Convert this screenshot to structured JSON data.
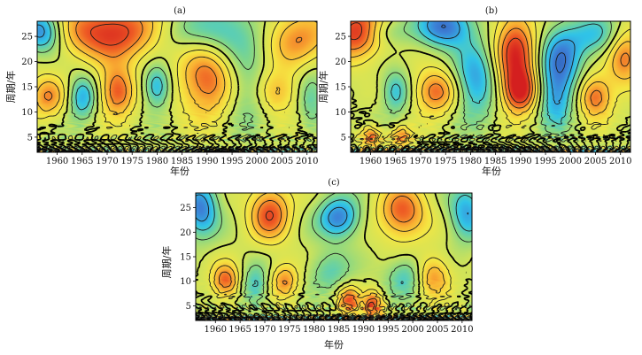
{
  "chart_data": [
    {
      "type": "heatmap",
      "panel_label": "(a)",
      "xlabel": "年份",
      "ylabel": "周期/年",
      "xlim": [
        1956,
        2012
      ],
      "ylim": [
        2,
        28
      ],
      "xticks": [
        "1960",
        "1965",
        "1970",
        "1975",
        "1980",
        "1985",
        "1990",
        "1995",
        "2000",
        "2005",
        "2010"
      ],
      "yticks": [
        "5",
        "10",
        "15",
        "20",
        "25"
      ],
      "grid": false,
      "centers": [
        {
          "x": 1971,
          "y": 26,
          "v": 0.95,
          "sx": 8,
          "sy": 4
        },
        {
          "x": 1972,
          "y": 14,
          "v": 0.8,
          "sx": 2.5,
          "sy": 3.5
        },
        {
          "x": 1958,
          "y": 13,
          "v": 0.6,
          "sx": 2.5,
          "sy": 3
        },
        {
          "x": 1990,
          "y": 16,
          "v": 0.75,
          "sx": 4,
          "sy": 5
        },
        {
          "x": 2004,
          "y": 14,
          "v": 0.5,
          "sx": 3,
          "sy": 3
        },
        {
          "x": 2008,
          "y": 25,
          "v": 0.65,
          "sx": 5,
          "sy": 4
        },
        {
          "x": 1957,
          "y": 26,
          "v": -0.85,
          "sx": 3,
          "sy": 3
        },
        {
          "x": 1965,
          "y": 13,
          "v": -0.6,
          "sx": 2,
          "sy": 3
        },
        {
          "x": 1980,
          "y": 15,
          "v": -0.6,
          "sx": 2,
          "sy": 3
        },
        {
          "x": 1995,
          "y": 26,
          "v": -0.45,
          "sx": 6,
          "sy": 4
        },
        {
          "x": 1998,
          "y": 14,
          "v": -0.35,
          "sx": 3,
          "sy": 5
        },
        {
          "x": 1983,
          "y": 26,
          "v": -0.3,
          "sx": 5,
          "sy": 3
        },
        {
          "x": 2011,
          "y": 13,
          "v": -0.35,
          "sx": 2,
          "sy": 4
        }
      ],
      "low_period_blobs": {
        "spacing": 2.5,
        "amplitude": 0.6,
        "period_scale": 2.8
      }
    },
    {
      "type": "heatmap",
      "panel_label": "(b)",
      "xlabel": "年份",
      "ylabel": "周期/年",
      "xlim": [
        1956,
        2012
      ],
      "ylim": [
        2,
        28
      ],
      "xticks": [
        "1960",
        "1965",
        "1970",
        "1975",
        "1980",
        "1985",
        "1990",
        "1995",
        "2000",
        "2005",
        "2010"
      ],
      "yticks": [
        "5",
        "10",
        "15",
        "20",
        "25"
      ],
      "grid": false,
      "centers": [
        {
          "x": 1957,
          "y": 26,
          "v": 0.9,
          "sx": 4,
          "sy": 4
        },
        {
          "x": 1973,
          "y": 14,
          "v": 0.75,
          "sx": 3,
          "sy": 3
        },
        {
          "x": 1989,
          "y": 22,
          "v": 0.9,
          "sx": 3,
          "sy": 6
        },
        {
          "x": 1990,
          "y": 14,
          "v": 0.85,
          "sx": 2.5,
          "sy": 3
        },
        {
          "x": 2005,
          "y": 13,
          "v": 0.75,
          "sx": 2.5,
          "sy": 3
        },
        {
          "x": 2011,
          "y": 21,
          "v": 0.7,
          "sx": 2.5,
          "sy": 4
        },
        {
          "x": 1960,
          "y": 5,
          "v": 0.7,
          "sx": 1.5,
          "sy": 1.5
        },
        {
          "x": 1966,
          "y": 5,
          "v": 0.6,
          "sx": 1.5,
          "sy": 1.5
        },
        {
          "x": 1975,
          "y": 27,
          "v": -0.8,
          "sx": 4,
          "sy": 3
        },
        {
          "x": 1965,
          "y": 14,
          "v": -0.5,
          "sx": 2,
          "sy": 3
        },
        {
          "x": 1981,
          "y": 16,
          "v": -0.65,
          "sx": 3,
          "sy": 5
        },
        {
          "x": 1998,
          "y": 20,
          "v": -0.7,
          "sx": 3,
          "sy": 5
        },
        {
          "x": 1997,
          "y": 12,
          "v": -0.5,
          "sx": 2.5,
          "sy": 4
        },
        {
          "x": 2005,
          "y": 25,
          "v": -0.45,
          "sx": 4,
          "sy": 3
        },
        {
          "x": 1963,
          "y": 26,
          "v": -0.3,
          "sx": 3,
          "sy": 2
        }
      ],
      "low_period_blobs": {
        "spacing": 2.3,
        "amplitude": 0.65,
        "period_scale": 2.6
      }
    },
    {
      "type": "heatmap",
      "panel_label": "(c)",
      "xlabel": "年份",
      "ylabel": "周期/年",
      "xlim": [
        1956,
        2012
      ],
      "ylim": [
        2,
        28
      ],
      "xticks": [
        "1960",
        "1965",
        "1970",
        "1975",
        "1980",
        "1985",
        "1990",
        "1995",
        "2000",
        "2005",
        "2010"
      ],
      "yticks": [
        "5",
        "10",
        "15",
        "20",
        "25"
      ],
      "grid": false,
      "centers": [
        {
          "x": 1971,
          "y": 24,
          "v": 0.8,
          "sx": 3,
          "sy": 4
        },
        {
          "x": 1998,
          "y": 24,
          "v": 0.75,
          "sx": 3.5,
          "sy": 4
        },
        {
          "x": 1962,
          "y": 10,
          "v": 0.75,
          "sx": 2,
          "sy": 2.5
        },
        {
          "x": 1974,
          "y": 10,
          "v": 0.6,
          "sx": 2,
          "sy": 2.5
        },
        {
          "x": 2004,
          "y": 11,
          "v": 0.65,
          "sx": 2.5,
          "sy": 3
        },
        {
          "x": 1987,
          "y": 6,
          "v": 0.75,
          "sx": 1.5,
          "sy": 2
        },
        {
          "x": 1992,
          "y": 5,
          "v": 0.8,
          "sx": 1.5,
          "sy": 2
        },
        {
          "x": 1957,
          "y": 25,
          "v": -0.75,
          "sx": 2.5,
          "sy": 4
        },
        {
          "x": 1985,
          "y": 23,
          "v": -0.75,
          "sx": 3,
          "sy": 3
        },
        {
          "x": 2011,
          "y": 24,
          "v": -0.6,
          "sx": 2.5,
          "sy": 4
        },
        {
          "x": 1968,
          "y": 9,
          "v": -0.45,
          "sx": 2,
          "sy": 3
        },
        {
          "x": 1983,
          "y": 12,
          "v": -0.35,
          "sx": 3,
          "sy": 3
        },
        {
          "x": 1999,
          "y": 11,
          "v": -0.45,
          "sx": 3,
          "sy": 3
        }
      ],
      "low_period_blobs": {
        "spacing": 2.2,
        "amplitude": 0.7,
        "period_scale": 2.5
      }
    }
  ],
  "colors": {
    "scale": [
      "#2a4fa8",
      "#3d7fd6",
      "#30c4e8",
      "#7fd68a",
      "#cfe35a",
      "#f5e642",
      "#f9b233",
      "#ee5a24",
      "#d41f1f"
    ],
    "zero_contour": "#000000",
    "negative_contour": "#1a1a1a",
    "positive_contour": "#1a1a1a"
  }
}
